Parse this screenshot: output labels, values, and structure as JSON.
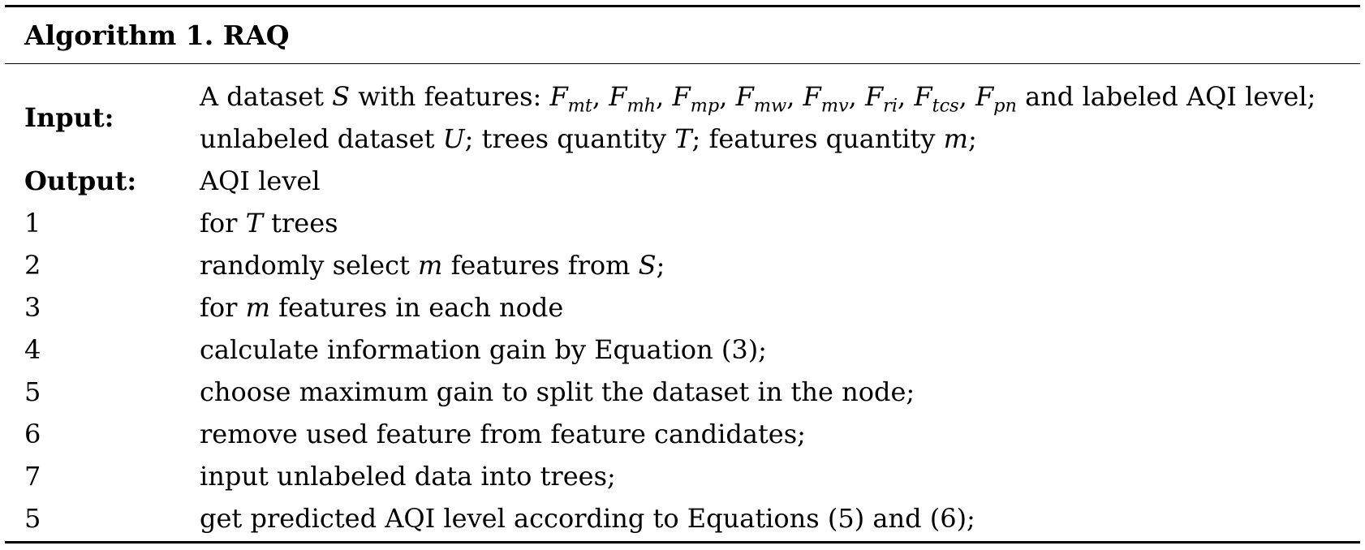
{
  "algorithm": {
    "title": "Algorithm 1. RAQ",
    "input_label": "Input:",
    "input_line1": {
      "t1": "A dataset ",
      "S": "S",
      "t2": " with features: ",
      "features": [
        {
          "base": "F",
          "sub": "mt",
          "sep": ", "
        },
        {
          "base": "F",
          "sub": "mh",
          "sep": ", "
        },
        {
          "base": "F",
          "sub": "mp",
          "sep": ", "
        },
        {
          "base": "F",
          "sub": "mw",
          "sep": ", "
        },
        {
          "base": "F",
          "sub": "mv",
          "sep": ", "
        },
        {
          "base": "F",
          "sub": "ri",
          "sep": ", "
        },
        {
          "base": "F",
          "sub": "tcs",
          "sep": ", "
        },
        {
          "base": "F",
          "sub": "pn",
          "sep": ""
        }
      ],
      "t3": " and labeled AQI level;"
    },
    "input_line2": {
      "t1": "unlabeled dataset ",
      "U": "U",
      "t2": "; trees quantity ",
      "T": "T",
      "t3": "; features quantity ",
      "m": "m",
      "t4": ";"
    },
    "output_label": "Output:",
    "output_value": "AQI level",
    "steps": [
      {
        "num": "1",
        "parts": [
          {
            "t": "for "
          },
          {
            "m": "T"
          },
          {
            "t": " trees"
          }
        ]
      },
      {
        "num": "2",
        "parts": [
          {
            "t": "randomly select "
          },
          {
            "m": "m"
          },
          {
            "t": " features from "
          },
          {
            "m": "S"
          },
          {
            "t": ";"
          }
        ]
      },
      {
        "num": "3",
        "parts": [
          {
            "t": "for "
          },
          {
            "m": "m"
          },
          {
            "t": " features in each node"
          }
        ]
      },
      {
        "num": "4",
        "parts": [
          {
            "t": "calculate information gain by Equation (3);"
          }
        ]
      },
      {
        "num": "5",
        "parts": [
          {
            "t": "choose maximum gain to split the dataset in the node;"
          }
        ]
      },
      {
        "num": "6",
        "parts": [
          {
            "t": "remove used feature from feature candidates;"
          }
        ]
      },
      {
        "num": "7",
        "parts": [
          {
            "t": "input unlabeled data into trees;"
          }
        ]
      },
      {
        "num": "5",
        "parts": [
          {
            "t": "get predicted AQI level according to Equations (5) and (6);"
          }
        ]
      }
    ]
  }
}
